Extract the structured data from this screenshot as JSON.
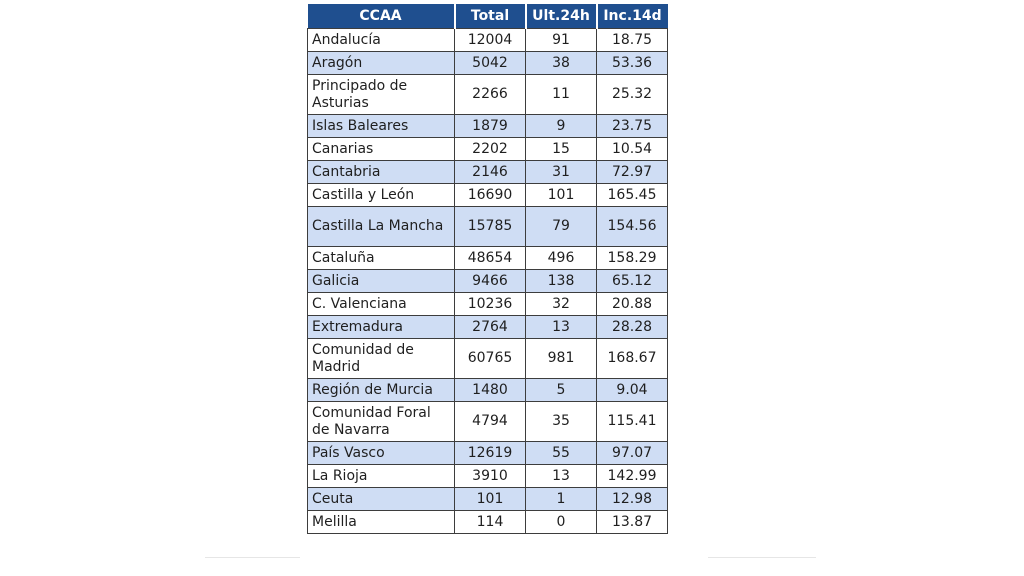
{
  "headers": [
    "CCAA",
    "Total",
    "Ult.24h",
    "Inc.14d"
  ],
  "rows": [
    {
      "ccaa": "Andalucía",
      "total": "12004",
      "ult24h": "91",
      "inc14d": "18.75"
    },
    {
      "ccaa": "Aragón",
      "total": "5042",
      "ult24h": "38",
      "inc14d": "53.36"
    },
    {
      "ccaa": "Principado de Asturias",
      "total": "2266",
      "ult24h": "11",
      "inc14d": "25.32"
    },
    {
      "ccaa": "Islas Baleares",
      "total": "1879",
      "ult24h": "9",
      "inc14d": "23.75"
    },
    {
      "ccaa": "Canarias",
      "total": "2202",
      "ult24h": "15",
      "inc14d": "10.54"
    },
    {
      "ccaa": "Cantabria",
      "total": "2146",
      "ult24h": "31",
      "inc14d": "72.97"
    },
    {
      "ccaa": "Castilla y León",
      "total": "16690",
      "ult24h": "101",
      "inc14d": "165.45"
    },
    {
      "ccaa": "Castilla La Mancha",
      "total": "15785",
      "ult24h": "79",
      "inc14d": "154.56"
    },
    {
      "ccaa": "Cataluña",
      "total": "48654",
      "ult24h": "496",
      "inc14d": "158.29"
    },
    {
      "ccaa": "Galicia",
      "total": "9466",
      "ult24h": "138",
      "inc14d": "65.12"
    },
    {
      "ccaa": "C. Valenciana",
      "total": "10236",
      "ult24h": "32",
      "inc14d": "20.88"
    },
    {
      "ccaa": "Extremadura",
      "total": "2764",
      "ult24h": "13",
      "inc14d": "28.28"
    },
    {
      "ccaa": "Comunidad de Madrid",
      "total": "60765",
      "ult24h": "981",
      "inc14d": "168.67"
    },
    {
      "ccaa": "Región de Murcia",
      "total": "1480",
      "ult24h": "5",
      "inc14d": "9.04"
    },
    {
      "ccaa": "Comunidad Foral de Navarra",
      "total": "4794",
      "ult24h": "35",
      "inc14d": "115.41"
    },
    {
      "ccaa": "País Vasco",
      "total": "12619",
      "ult24h": "55",
      "inc14d": "97.07"
    },
    {
      "ccaa": "La Rioja",
      "total": "3910",
      "ult24h": "13",
      "inc14d": "142.99"
    },
    {
      "ccaa": "Ceuta",
      "total": "101",
      "ult24h": "1",
      "inc14d": "12.98"
    },
    {
      "ccaa": "Melilla",
      "total": "114",
      "ult24h": "0",
      "inc14d": "13.87"
    }
  ],
  "colors": {
    "header_bg": "#1f4f8f",
    "header_text": "#ffffff",
    "row_alt_bg": "#cfddf4",
    "row_bg": "#ffffff",
    "border": "#3d3d3d"
  }
}
